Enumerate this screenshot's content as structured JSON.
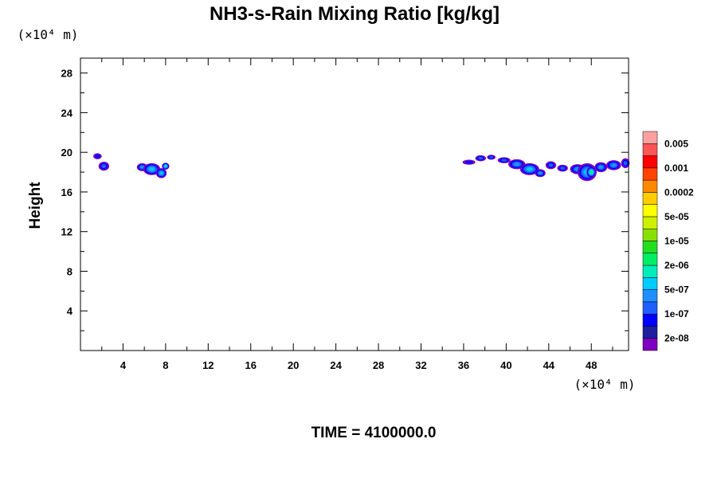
{
  "chart_data": {
    "type": "heatmap",
    "title": "NH3-s-Rain Mixing Ratio [kg/kg]",
    "ylabel": "Height",
    "x_unit_label": "(×10⁴ m)",
    "y_unit_label": "(×10⁴ m)",
    "xlim": [
      0,
      51.5
    ],
    "ylim": [
      0,
      29.5
    ],
    "x_ticks": [
      4,
      8,
      12,
      16,
      20,
      24,
      28,
      32,
      36,
      40,
      44,
      48
    ],
    "y_ticks": [
      4,
      8,
      12,
      16,
      20,
      24,
      28
    ],
    "grid": false,
    "colorbar": {
      "colors": [
        "#7f00bf",
        "#1f1f9f",
        "#0000ff",
        "#1f5fff",
        "#1f8fff",
        "#00ccff",
        "#00eebb",
        "#00ee66",
        "#22dd22",
        "#88e000",
        "#ccf000",
        "#ffff00",
        "#ffcc00",
        "#ff8800",
        "#ff4400",
        "#ff0000",
        "#ff5555",
        "#ffa0a0"
      ],
      "labels": [
        "2e-08",
        "1e-07",
        "5e-07",
        "2e-06",
        "1e-05",
        "5e-05",
        "0.0002",
        "0.001",
        "0.005"
      ]
    },
    "features": [
      {
        "x": 1.6,
        "y": 19.6,
        "rx": 0.4,
        "ry": 0.3,
        "level": 1
      },
      {
        "x": 2.2,
        "y": 18.6,
        "rx": 0.5,
        "ry": 0.45,
        "level": 2
      },
      {
        "x": 5.8,
        "y": 18.5,
        "rx": 0.5,
        "ry": 0.4,
        "level": 3
      },
      {
        "x": 6.7,
        "y": 18.3,
        "rx": 0.8,
        "ry": 0.6,
        "level": 4
      },
      {
        "x": 7.6,
        "y": 17.9,
        "rx": 0.5,
        "ry": 0.5,
        "level": 4
      },
      {
        "x": 8.0,
        "y": 18.6,
        "rx": 0.35,
        "ry": 0.35,
        "level": 5
      },
      {
        "x": 36.5,
        "y": 19.0,
        "rx": 0.6,
        "ry": 0.25,
        "level": 1
      },
      {
        "x": 37.6,
        "y": 19.4,
        "rx": 0.5,
        "ry": 0.3,
        "level": 2
      },
      {
        "x": 38.6,
        "y": 19.5,
        "rx": 0.4,
        "ry": 0.25,
        "level": 2
      },
      {
        "x": 39.8,
        "y": 19.2,
        "rx": 0.6,
        "ry": 0.3,
        "level": 2
      },
      {
        "x": 41.0,
        "y": 18.8,
        "rx": 0.8,
        "ry": 0.5,
        "level": 3
      },
      {
        "x": 42.2,
        "y": 18.3,
        "rx": 0.9,
        "ry": 0.6,
        "level": 4
      },
      {
        "x": 43.2,
        "y": 17.9,
        "rx": 0.5,
        "ry": 0.4,
        "level": 3
      },
      {
        "x": 44.2,
        "y": 18.7,
        "rx": 0.5,
        "ry": 0.4,
        "level": 2
      },
      {
        "x": 45.3,
        "y": 18.4,
        "rx": 0.5,
        "ry": 0.35,
        "level": 2
      },
      {
        "x": 46.7,
        "y": 18.3,
        "rx": 0.7,
        "ry": 0.5,
        "level": 3
      },
      {
        "x": 47.6,
        "y": 18.0,
        "rx": 0.9,
        "ry": 0.9,
        "level": 4
      },
      {
        "x": 48.0,
        "y": 18.0,
        "rx": 0.45,
        "ry": 0.55,
        "level": 6
      },
      {
        "x": 48.9,
        "y": 18.5,
        "rx": 0.6,
        "ry": 0.5,
        "level": 3
      },
      {
        "x": 50.1,
        "y": 18.7,
        "rx": 0.7,
        "ry": 0.5,
        "level": 3
      },
      {
        "x": 51.2,
        "y": 18.9,
        "rx": 0.4,
        "ry": 0.5,
        "level": 2
      }
    ]
  },
  "footer": {
    "time_label": "TIME = 4100000.0"
  }
}
